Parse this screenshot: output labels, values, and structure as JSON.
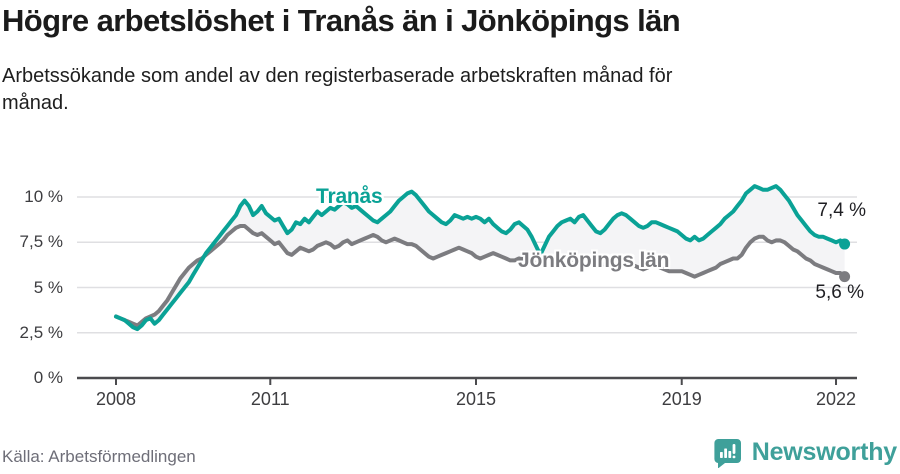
{
  "header": {
    "title": "Högre arbetslöshet i Tranås än i Jönköpings län",
    "subtitle": "Arbetssökande som andel av den registerbaserade arbetskraften månad för månad."
  },
  "footer": {
    "source": "Källa: Arbetsförmedlingen",
    "brand_name": "Newsworthy",
    "brand_color": "#3fa09a",
    "logo_icon": "bar-chart-speech-bubble-icon"
  },
  "chart_data": {
    "type": "line",
    "x_unit": "month",
    "x_start": "2008-01",
    "x_end": "2022-03",
    "grid": true,
    "ylim": [
      0,
      11
    ],
    "y_ticks": [
      {
        "label": "0 %",
        "value": 0
      },
      {
        "label": "2,5 %",
        "value": 2.5
      },
      {
        "label": "5 %",
        "value": 5
      },
      {
        "label": "7,5 %",
        "value": 7.5
      },
      {
        "label": "10 %",
        "value": 10
      }
    ],
    "x_ticks": [
      {
        "label": "2008",
        "year": 2008
      },
      {
        "label": "2011",
        "year": 2011
      },
      {
        "label": "2015",
        "year": 2015
      },
      {
        "label": "2019",
        "year": 2019
      },
      {
        "label": "2022",
        "year": 2022
      }
    ],
    "band_fill": "#f4f4f6",
    "series": [
      {
        "name": "Tranås",
        "color": "#0aa296",
        "end_label": "7,4 %",
        "end_value": 7.4,
        "values": [
          3.4,
          3.3,
          3.2,
          3.0,
          2.8,
          2.7,
          2.9,
          3.2,
          3.3,
          3.0,
          3.2,
          3.5,
          3.8,
          4.1,
          4.4,
          4.7,
          5.0,
          5.3,
          5.7,
          6.1,
          6.5,
          6.9,
          7.2,
          7.5,
          7.8,
          8.1,
          8.4,
          8.7,
          9.0,
          9.5,
          9.8,
          9.5,
          9.0,
          9.2,
          9.5,
          9.1,
          8.9,
          8.7,
          8.8,
          8.4,
          8.0,
          8.2,
          8.6,
          8.5,
          8.8,
          8.6,
          8.9,
          9.2,
          9.0,
          9.2,
          9.4,
          9.3,
          9.5,
          9.7,
          9.6,
          9.4,
          9.5,
          9.3,
          9.1,
          8.9,
          8.7,
          8.6,
          8.8,
          9.0,
          9.2,
          9.5,
          9.8,
          10.0,
          10.2,
          10.3,
          10.1,
          9.8,
          9.5,
          9.2,
          9.0,
          8.8,
          8.6,
          8.5,
          8.7,
          9.0,
          8.9,
          8.8,
          8.9,
          8.8,
          8.9,
          8.8,
          8.6,
          8.8,
          8.5,
          8.3,
          8.1,
          8.0,
          8.2,
          8.5,
          8.6,
          8.4,
          8.2,
          7.8,
          7.3,
          6.8,
          7.3,
          7.8,
          8.1,
          8.4,
          8.6,
          8.7,
          8.8,
          8.6,
          8.9,
          9.0,
          8.7,
          8.4,
          8.1,
          8.0,
          8.2,
          8.5,
          8.8,
          9.0,
          9.1,
          9.0,
          8.8,
          8.6,
          8.4,
          8.3,
          8.4,
          8.6,
          8.6,
          8.5,
          8.4,
          8.3,
          8.2,
          8.1,
          7.9,
          7.7,
          7.6,
          7.8,
          7.6,
          7.7,
          7.9,
          8.1,
          8.3,
          8.5,
          8.8,
          9.0,
          9.2,
          9.5,
          9.8,
          10.2,
          10.4,
          10.6,
          10.5,
          10.4,
          10.4,
          10.5,
          10.6,
          10.4,
          10.1,
          9.8,
          9.4,
          9.0,
          8.7,
          8.4,
          8.1,
          7.9,
          7.8,
          7.8,
          7.7,
          7.6,
          7.5,
          7.6,
          7.4
        ]
      },
      {
        "name": "Jönköpings län",
        "color": "#7c7c80",
        "end_label": "5,6 %",
        "end_value": 5.6,
        "values": [
          3.4,
          3.3,
          3.2,
          3.1,
          3.0,
          2.9,
          3.1,
          3.3,
          3.4,
          3.5,
          3.7,
          4.0,
          4.3,
          4.7,
          5.1,
          5.5,
          5.8,
          6.1,
          6.3,
          6.5,
          6.6,
          6.8,
          7.0,
          7.2,
          7.4,
          7.6,
          7.9,
          8.1,
          8.3,
          8.4,
          8.4,
          8.2,
          8.0,
          7.9,
          8.0,
          7.8,
          7.6,
          7.4,
          7.5,
          7.2,
          6.9,
          6.8,
          7.0,
          7.2,
          7.1,
          7.0,
          7.1,
          7.3,
          7.4,
          7.5,
          7.4,
          7.2,
          7.3,
          7.5,
          7.6,
          7.4,
          7.5,
          7.6,
          7.7,
          7.8,
          7.9,
          7.8,
          7.6,
          7.5,
          7.6,
          7.7,
          7.6,
          7.5,
          7.4,
          7.4,
          7.3,
          7.1,
          6.9,
          6.7,
          6.6,
          6.7,
          6.8,
          6.9,
          7.0,
          7.1,
          7.2,
          7.1,
          7.0,
          6.9,
          6.7,
          6.6,
          6.7,
          6.8,
          6.9,
          6.8,
          6.7,
          6.6,
          6.5,
          6.5,
          6.6,
          6.6,
          6.5,
          6.4,
          6.4,
          6.3,
          6.4,
          6.6,
          6.6,
          6.5,
          6.4,
          6.3,
          6.4,
          6.4,
          6.5,
          6.5,
          6.4,
          6.3,
          6.2,
          6.2,
          6.3,
          6.4,
          6.3,
          6.2,
          6.3,
          6.3,
          6.3,
          6.2,
          6.1,
          6.0,
          6.1,
          6.2,
          6.2,
          6.1,
          6.0,
          5.9,
          5.9,
          5.9,
          5.9,
          5.8,
          5.7,
          5.6,
          5.7,
          5.8,
          5.9,
          6.0,
          6.1,
          6.3,
          6.4,
          6.5,
          6.6,
          6.6,
          6.8,
          7.2,
          7.5,
          7.7,
          7.8,
          7.8,
          7.6,
          7.5,
          7.6,
          7.6,
          7.5,
          7.3,
          7.1,
          7.0,
          6.8,
          6.6,
          6.5,
          6.3,
          6.2,
          6.1,
          6.0,
          5.9,
          5.8,
          5.8,
          5.6
        ]
      }
    ]
  }
}
